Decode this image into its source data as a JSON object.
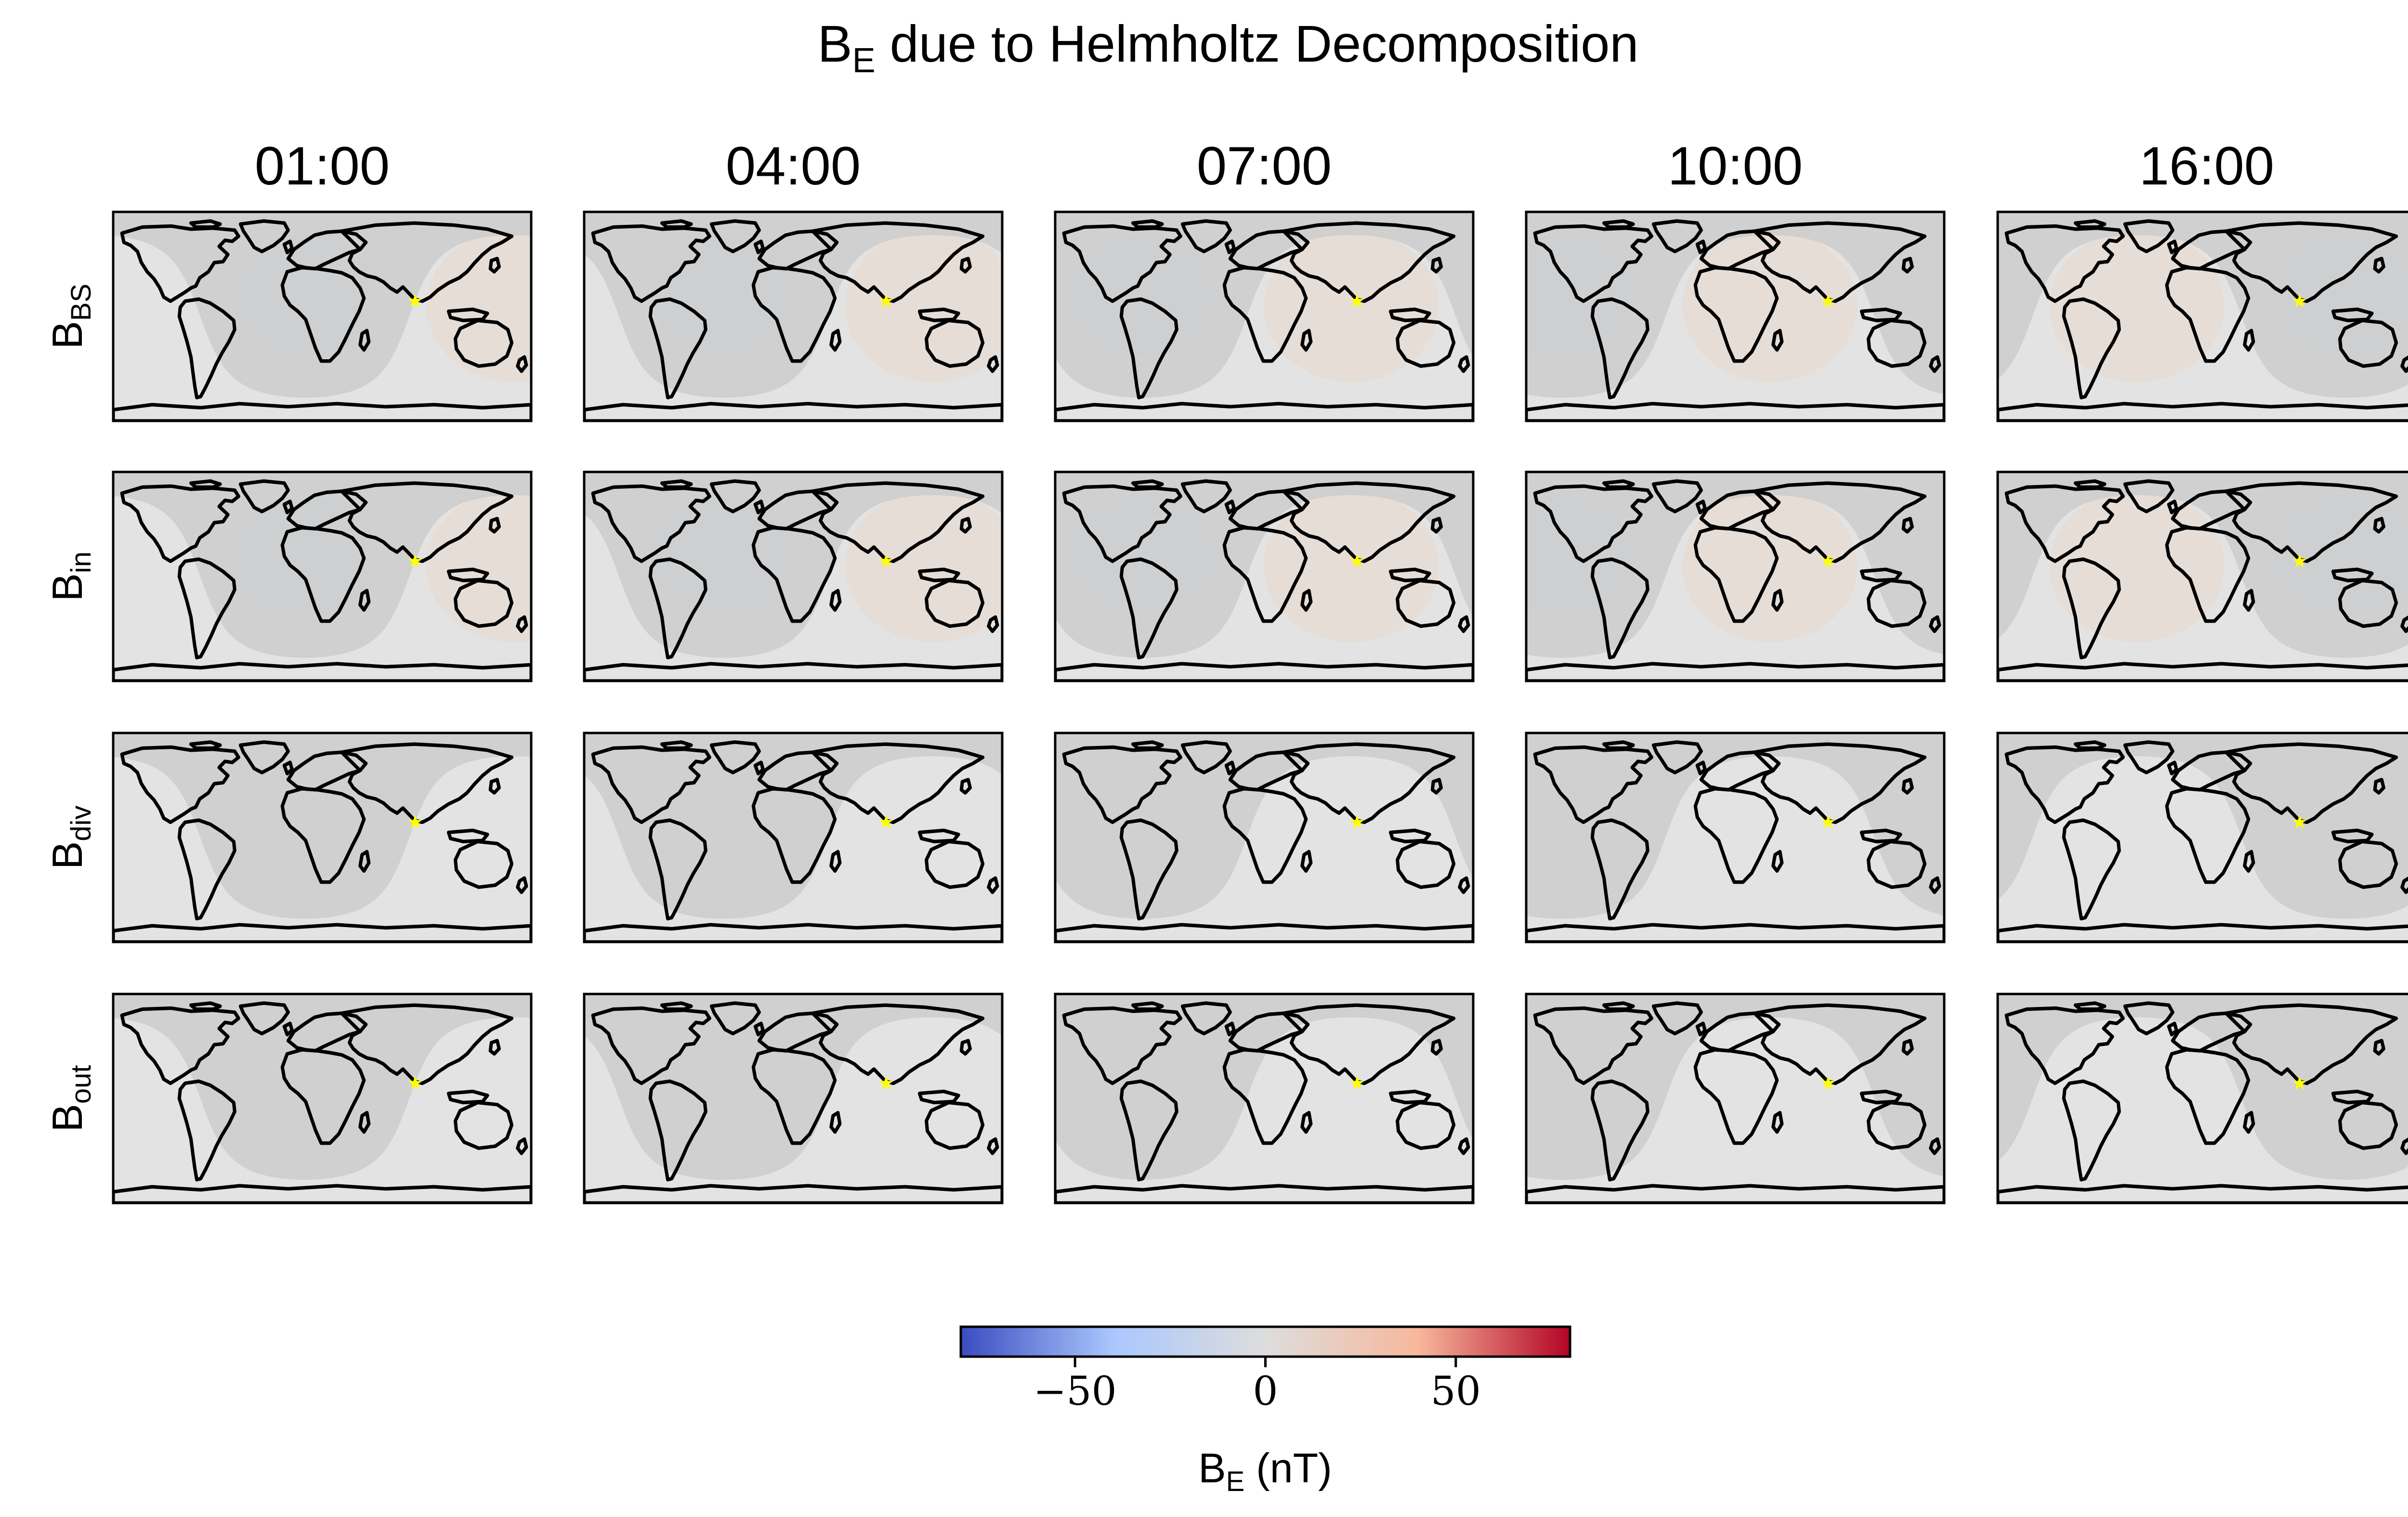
{
  "title": {
    "main": "B",
    "sub": "E",
    "rest": " due to Helmholtz Decomposition"
  },
  "columns": [
    "01:00",
    "04:00",
    "07:00",
    "10:00",
    "16:00"
  ],
  "rows": [
    {
      "base": "B",
      "sub": "BS"
    },
    {
      "base": "B",
      "sub": "in"
    },
    {
      "base": "B",
      "sub": "div"
    },
    {
      "base": "B",
      "sub": "out"
    }
  ],
  "colorbar": {
    "min": -80,
    "max": 80,
    "ticks": [
      {
        "value": -50,
        "label": "−50"
      },
      {
        "value": 0,
        "label": "0"
      },
      {
        "value": 50,
        "label": "50"
      }
    ],
    "label": {
      "main": "B",
      "sub": "E",
      "rest": " (nT)"
    },
    "colormap": "coolwarm",
    "stops": [
      "#3b4cc0",
      "#aac7fd",
      "#dddddd",
      "#f7b89c",
      "#b40426"
    ]
  },
  "colors": {
    "night_shade": "#c9c9c9",
    "day_base": "#e3e3e3",
    "coast": "#000000",
    "marker": "#ffff00"
  },
  "marker": {
    "icon": "star-marker",
    "lon": 80,
    "lat": 13
  }
}
